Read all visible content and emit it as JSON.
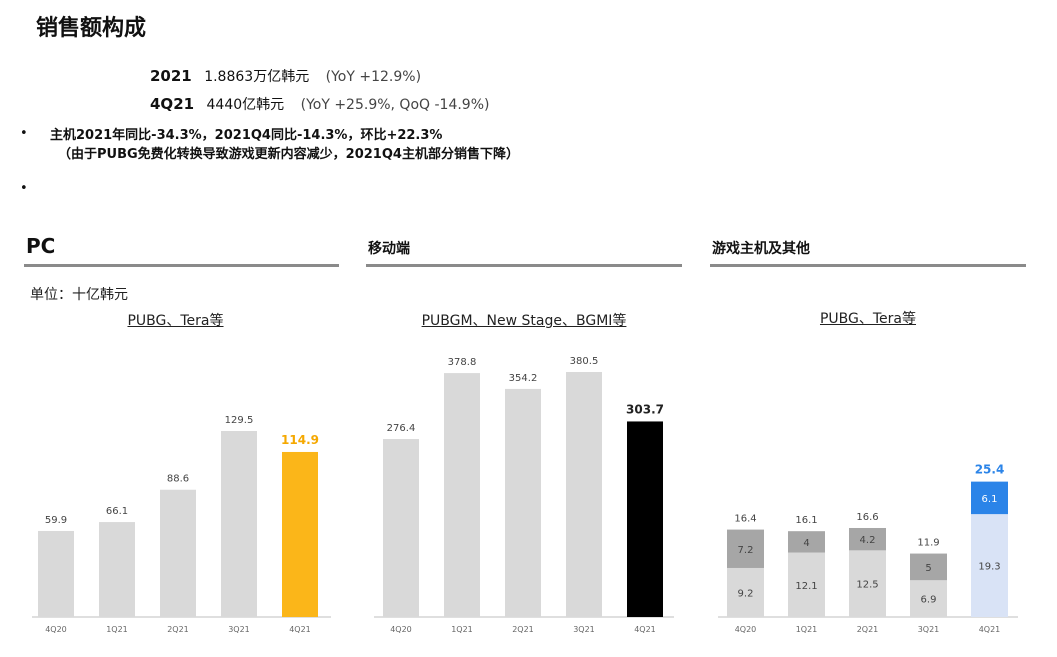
{
  "page": {
    "title": "销售额构成"
  },
  "summary": {
    "line1": {
      "year": "2021",
      "amount": "1.8863万亿韩元",
      "change": "(YoY +12.9%)"
    },
    "line2": {
      "year": "4Q21",
      "amount": "4440亿韩元",
      "change": "(YoY +25.9%, QoQ -14.9%)"
    }
  },
  "bullets": {
    "dot1": "•",
    "text1": "主机2021年同比-34.3%，2021Q4同比-14.3%，环比+22.3%",
    "text1_sub": "（由于PUBG免费化转换导致游戏更新内容减少，2021Q4主机部分销售下降）",
    "dot2": "•"
  },
  "colors": {
    "gray_bar": "#d9d9d9",
    "pc_highlight": "#fbb619",
    "mobile_highlight": "#000000",
    "console_dark": "#a6a6a6",
    "console_light": "#d9d9d9",
    "console_highlight_top": "#2b84e8",
    "console_highlight_bottom": "#d9e3f6",
    "axis": "#bfbfbf"
  },
  "panels": {
    "pc": {
      "title": "PC",
      "unit": "单位：十亿韩元",
      "subtitle": "PUBG、Tera等"
    },
    "mobile": {
      "title": "移动端",
      "subtitle": "PUBGM、New Stage、BGMI等"
    },
    "console": {
      "title": "游戏主机及其他",
      "subtitle": "PUBG、Tera等"
    }
  },
  "chart_data": [
    {
      "type": "bar",
      "title": "PC",
      "categories": [
        "4Q20",
        "1Q21",
        "2Q21",
        "3Q21",
        "4Q21"
      ],
      "values": [
        59.9,
        66.1,
        88.6,
        129.5,
        114.9
      ],
      "highlight_index": 4
    },
    {
      "type": "bar",
      "title": "移动端",
      "categories": [
        "4Q20",
        "1Q21",
        "2Q21",
        "3Q21",
        "4Q21"
      ],
      "values": [
        276.4,
        378.8,
        354.2,
        380.5,
        303.7
      ],
      "highlight_index": 4
    },
    {
      "type": "bar",
      "stacked": true,
      "title": "游戏主机及其他",
      "categories": [
        "4Q20",
        "1Q21",
        "2Q21",
        "3Q21",
        "4Q21"
      ],
      "series": [
        {
          "values": [
            9.2,
            12.1,
            12.5,
            6.9,
            19.3
          ]
        },
        {
          "values": [
            7.2,
            4.0,
            4.2,
            5.0,
            6.1
          ]
        }
      ],
      "totals": [
        16.4,
        16.1,
        16.6,
        11.9,
        25.4
      ],
      "highlight_index": 4
    }
  ]
}
